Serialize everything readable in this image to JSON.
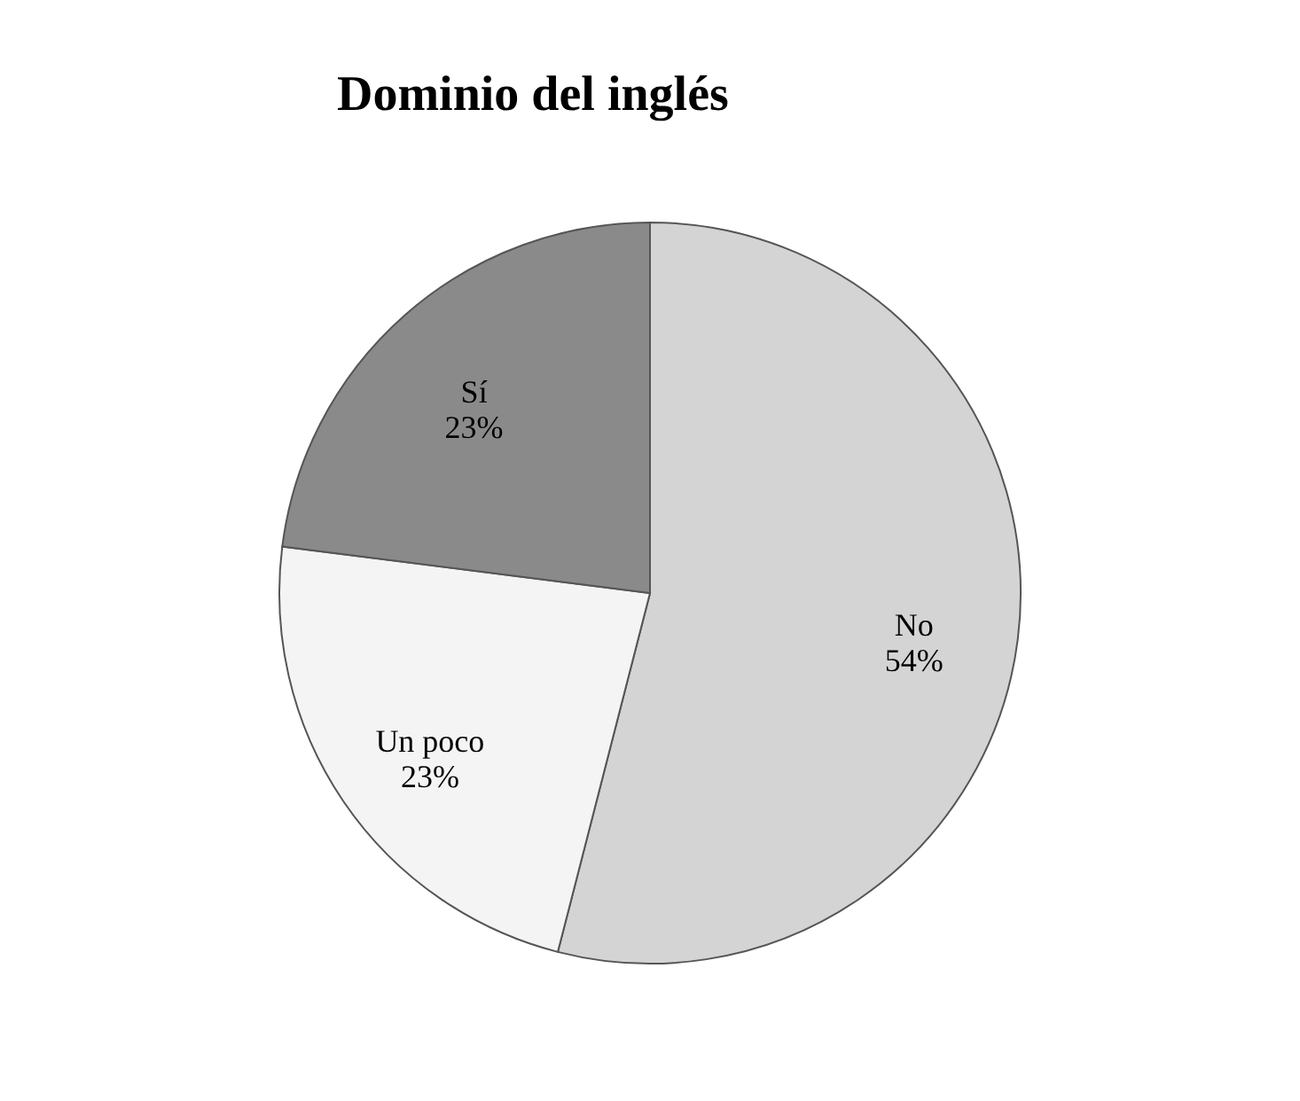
{
  "chart_data": {
    "type": "pie",
    "title": "Dominio del inglés",
    "categories": [
      "No",
      "Un poco",
      "Sí"
    ],
    "values": [
      54,
      23,
      23
    ],
    "colors": [
      "#d4d4d4",
      "#f4f4f4",
      "#8a8a8a"
    ],
    "value_labels": [
      "54%",
      "23%",
      "23%"
    ],
    "legend": false
  }
}
